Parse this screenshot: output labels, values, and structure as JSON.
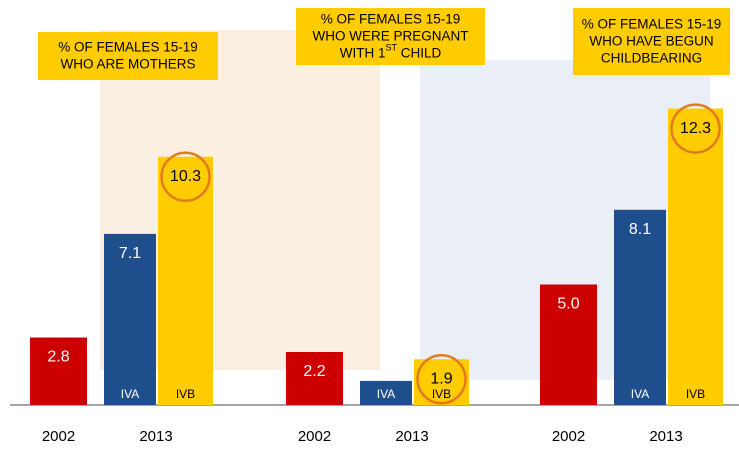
{
  "chart_data": [
    {
      "type": "bar",
      "title": [
        [
          "% OF FEMALES 15-19"
        ],
        [
          "WHO ARE MOTHERS"
        ]
      ],
      "categories": [
        "2002",
        "2013"
      ],
      "series": [
        {
          "color": "#cc0000",
          "label_color": "#ffffff",
          "values": [
            2.8,
            null
          ],
          "value_labels": [
            "2.8",
            null
          ]
        },
        {
          "name": "IVA",
          "color": "#1f4e8c",
          "label_color": "#ffffff",
          "values": [
            null,
            7.1
          ],
          "value_labels": [
            null,
            "7.1"
          ]
        },
        {
          "name": "IVB",
          "color": "#ffcc00",
          "label_color": "#000000",
          "values": [
            null,
            10.3
          ],
          "value_labels": [
            null,
            "10.3"
          ],
          "highlight": true
        }
      ],
      "ylim": [
        0,
        15
      ]
    },
    {
      "type": "bar",
      "title": [
        [
          "% OF FEMALES 15-19"
        ],
        [
          "WHO WERE PREGNANT"
        ],
        [
          "WITH 1",
          "ST",
          " CHILD"
        ]
      ],
      "categories": [
        "2002",
        "2013"
      ],
      "series": [
        {
          "color": "#cc0000",
          "label_color": "#ffffff",
          "values": [
            2.2,
            null
          ],
          "value_labels": [
            "2.2",
            null
          ]
        },
        {
          "name": "IVA",
          "color": "#1f4e8c",
          "label_color": "#ffffff",
          "values": [
            null,
            1.0
          ],
          "value_labels": [
            null,
            null
          ]
        },
        {
          "name": "IVB",
          "color": "#ffcc00",
          "label_color": "#000000",
          "values": [
            null,
            1.9
          ],
          "value_labels": [
            null,
            "1.9"
          ],
          "highlight": true
        }
      ],
      "ylim": [
        0,
        15
      ]
    },
    {
      "type": "bar",
      "title": [
        [
          "% OF FEMALES 15-19"
        ],
        [
          "WHO HAVE BEGUN"
        ],
        [
          "CHILDBEARING"
        ]
      ],
      "categories": [
        "2002",
        "2013"
      ],
      "series": [
        {
          "color": "#cc0000",
          "label_color": "#ffffff",
          "values": [
            5.0,
            null
          ],
          "value_labels": [
            "5.0",
            null
          ]
        },
        {
          "name": "IVA",
          "color": "#1f4e8c",
          "label_color": "#ffffff",
          "values": [
            null,
            8.1
          ],
          "value_labels": [
            null,
            "8.1"
          ]
        },
        {
          "name": "IVB",
          "color": "#ffcc00",
          "label_color": "#000000",
          "values": [
            null,
            12.3
          ],
          "value_labels": [
            null,
            "12.3"
          ],
          "highlight": true
        }
      ],
      "ylim": [
        0,
        15
      ]
    }
  ]
}
